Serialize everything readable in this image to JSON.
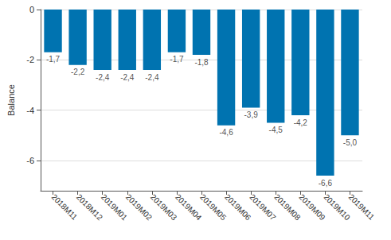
{
  "chart_data": {
    "type": "bar",
    "y_label": "Balance",
    "categories": [
      "2018M11",
      "2018M12",
      "2019M01",
      "2019M02",
      "2019M03",
      "2019M04",
      "2019M05",
      "2019M06",
      "2019M07",
      "2019M08",
      "2019M09",
      "2019M10",
      "2019M11"
    ],
    "values": [
      -1.7,
      -2.2,
      -2.4,
      -2.4,
      -2.4,
      -1.7,
      -1.8,
      -4.6,
      -3.9,
      -4.5,
      -4.2,
      -6.6,
      -5.0
    ],
    "value_labels": [
      "-1,7",
      "-2,2",
      "-2,4",
      "-2,4",
      "-2,4",
      "-1,7",
      "-1,8",
      "-4,6",
      "-3,9",
      "-4,5",
      "-4,2",
      "-6,6",
      "-5,0"
    ],
    "color": "#0073b0",
    "ylim": [
      -7.2,
      0
    ],
    "yticks": [
      0,
      -2,
      -4,
      -6
    ],
    "grid": true,
    "data_labels": true
  }
}
